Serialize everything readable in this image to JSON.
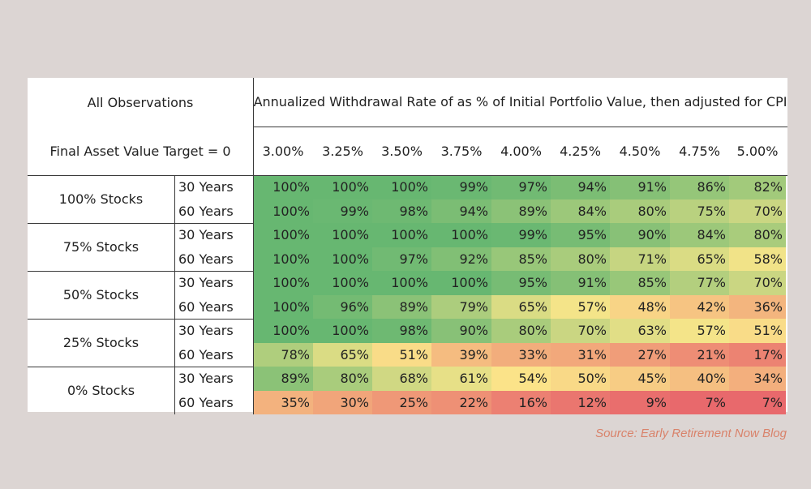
{
  "header": {
    "corner_top": "All Observations",
    "corner_bottom": "Final Asset Value Target = 0",
    "title": "Annualized Withdrawal Rate of as % of Initial Portfolio Value, then adjusted for CPI"
  },
  "source": "Source: Early Retirement Now Blog",
  "chart_data": {
    "type": "heatmap",
    "title": "Annualized Withdrawal Rate of as % of Initial Portfolio Value, then adjusted for CPI",
    "columns": [
      "3.00%",
      "3.25%",
      "3.50%",
      "3.75%",
      "4.00%",
      "4.25%",
      "4.50%",
      "4.75%",
      "5.00%"
    ],
    "groups": [
      {
        "label": "100% Stocks",
        "rows": [
          {
            "horizon": "30 Years",
            "values": [
              100,
              100,
              100,
              99,
              97,
              94,
              91,
              86,
              82
            ]
          },
          {
            "horizon": "60 Years",
            "values": [
              100,
              99,
              98,
              94,
              89,
              84,
              80,
              75,
              70
            ]
          }
        ]
      },
      {
        "label": "75% Stocks",
        "rows": [
          {
            "horizon": "30 Years",
            "values": [
              100,
              100,
              100,
              100,
              99,
              95,
              90,
              84,
              80
            ]
          },
          {
            "horizon": "60 Years",
            "values": [
              100,
              100,
              97,
              92,
              85,
              80,
              71,
              65,
              58
            ]
          }
        ]
      },
      {
        "label": "50% Stocks",
        "rows": [
          {
            "horizon": "30 Years",
            "values": [
              100,
              100,
              100,
              100,
              95,
              91,
              85,
              77,
              70
            ]
          },
          {
            "horizon": "60 Years",
            "values": [
              100,
              96,
              89,
              79,
              65,
              57,
              48,
              42,
              36
            ]
          }
        ]
      },
      {
        "label": "25% Stocks",
        "rows": [
          {
            "horizon": "30 Years",
            "values": [
              100,
              100,
              98,
              90,
              80,
              70,
              63,
              57,
              51
            ]
          },
          {
            "horizon": "60 Years",
            "values": [
              78,
              65,
              51,
              39,
              33,
              31,
              27,
              21,
              17
            ]
          }
        ]
      },
      {
        "label": "0% Stocks",
        "rows": [
          {
            "horizon": "30 Years",
            "values": [
              89,
              80,
              68,
              61,
              54,
              50,
              45,
              40,
              34
            ]
          },
          {
            "horizon": "60 Years",
            "values": [
              35,
              30,
              25,
              22,
              16,
              12,
              9,
              7,
              7
            ]
          }
        ]
      }
    ],
    "value_suffix": "%",
    "color_scale": {
      "low": "#e8696c",
      "mid": "#fbe68a",
      "high": "#67b771"
    }
  }
}
